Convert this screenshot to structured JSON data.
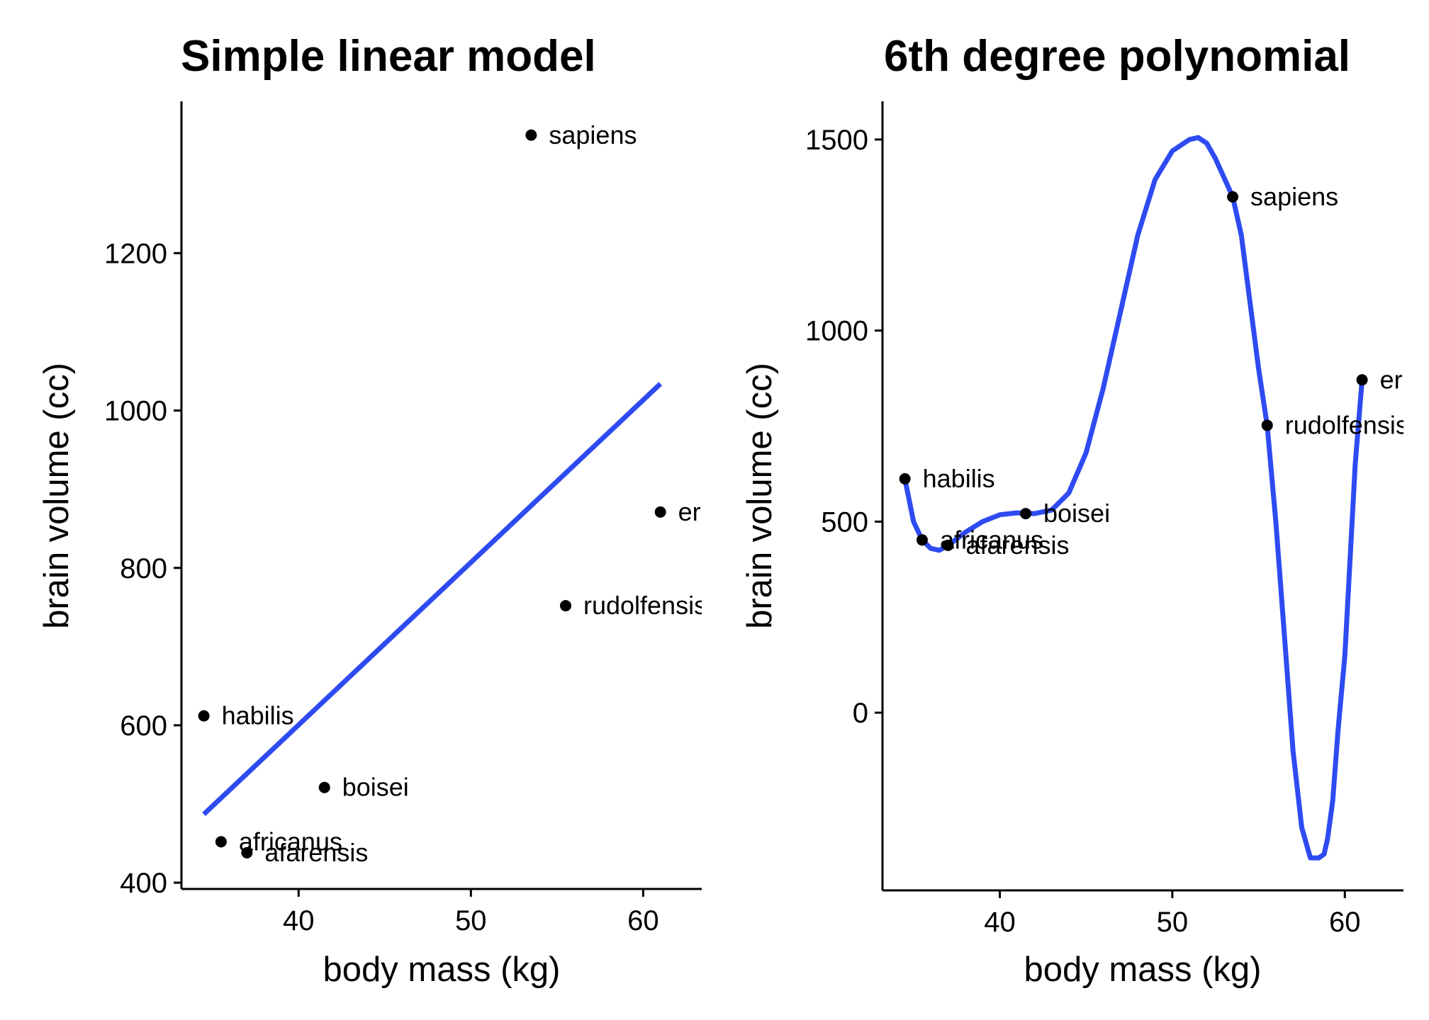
{
  "chart_data": [
    {
      "type": "scatter",
      "title": "Simple linear model",
      "xlabel": "body mass (kg)",
      "ylabel": "brain volume (cc)",
      "xlim": [
        33.2,
        63.4
      ],
      "ylim": [
        392,
        1393
      ],
      "xticks": [
        40,
        50,
        60
      ],
      "yticks": [
        400,
        600,
        800,
        1000,
        1200
      ],
      "grid": false,
      "legend": "none",
      "points": [
        {
          "species": "afarensis",
          "x": 37.0,
          "y": 438
        },
        {
          "species": "africanus",
          "x": 35.5,
          "y": 452
        },
        {
          "species": "habilis",
          "x": 34.5,
          "y": 612
        },
        {
          "species": "boisei",
          "x": 41.5,
          "y": 521
        },
        {
          "species": "rudolfensis",
          "x": 55.5,
          "y": 752
        },
        {
          "species": "ergaster",
          "x": 61.0,
          "y": 871
        },
        {
          "species": "sapiens",
          "x": 53.5,
          "y": 1350
        }
      ],
      "fit": {
        "label": "linear",
        "color": "#2e4bf2",
        "x": [
          34.5,
          61.0
        ],
        "y": [
          487,
          1034
        ]
      }
    },
    {
      "type": "scatter",
      "title": "6th degree polynomial",
      "xlabel": "body mass (kg)",
      "ylabel": "brain volume (cc)",
      "xlim": [
        33.2,
        63.4
      ],
      "ylim": [
        -465,
        1600
      ],
      "xticks": [
        40,
        50,
        60
      ],
      "yticks": [
        0,
        500,
        1000,
        1500
      ],
      "grid": false,
      "legend": "none",
      "points": [
        {
          "species": "afarensis",
          "x": 37.0,
          "y": 438
        },
        {
          "species": "africanus",
          "x": 35.5,
          "y": 452
        },
        {
          "species": "habilis",
          "x": 34.5,
          "y": 612
        },
        {
          "species": "boisei",
          "x": 41.5,
          "y": 521
        },
        {
          "species": "rudolfensis",
          "x": 55.5,
          "y": 752
        },
        {
          "species": "ergaster",
          "x": 61.0,
          "y": 871
        },
        {
          "species": "sapiens",
          "x": 53.5,
          "y": 1350
        }
      ],
      "fit": {
        "label": "polynomial degree 6",
        "color": "#2e4bf2",
        "x": [
          34.5,
          35.0,
          35.5,
          36.0,
          36.5,
          37.0,
          37.5,
          38.0,
          39.0,
          40.0,
          41.0,
          42.0,
          43.0,
          44.0,
          45.0,
          46.0,
          47.0,
          48.0,
          49.0,
          50.0,
          51.0,
          51.5,
          52.0,
          52.5,
          53.0,
          53.5,
          54.0,
          55.0,
          55.5,
          56.0,
          56.5,
          57.0,
          57.5,
          58.0,
          58.5,
          58.8,
          59.0,
          59.3,
          59.6,
          60.0,
          60.3,
          60.6,
          61.0
        ],
        "y": [
          612,
          500,
          452,
          430,
          425,
          438,
          455,
          472,
          500,
          518,
          523,
          521,
          530,
          575,
          680,
          850,
          1050,
          1250,
          1395,
          1470,
          1500,
          1505,
          1490,
          1450,
          1400,
          1350,
          1250,
          900,
          752,
          500,
          200,
          -100,
          -300,
          -380,
          -380,
          -370,
          -330,
          -230,
          -50,
          150,
          400,
          650,
          871
        ]
      }
    }
  ]
}
